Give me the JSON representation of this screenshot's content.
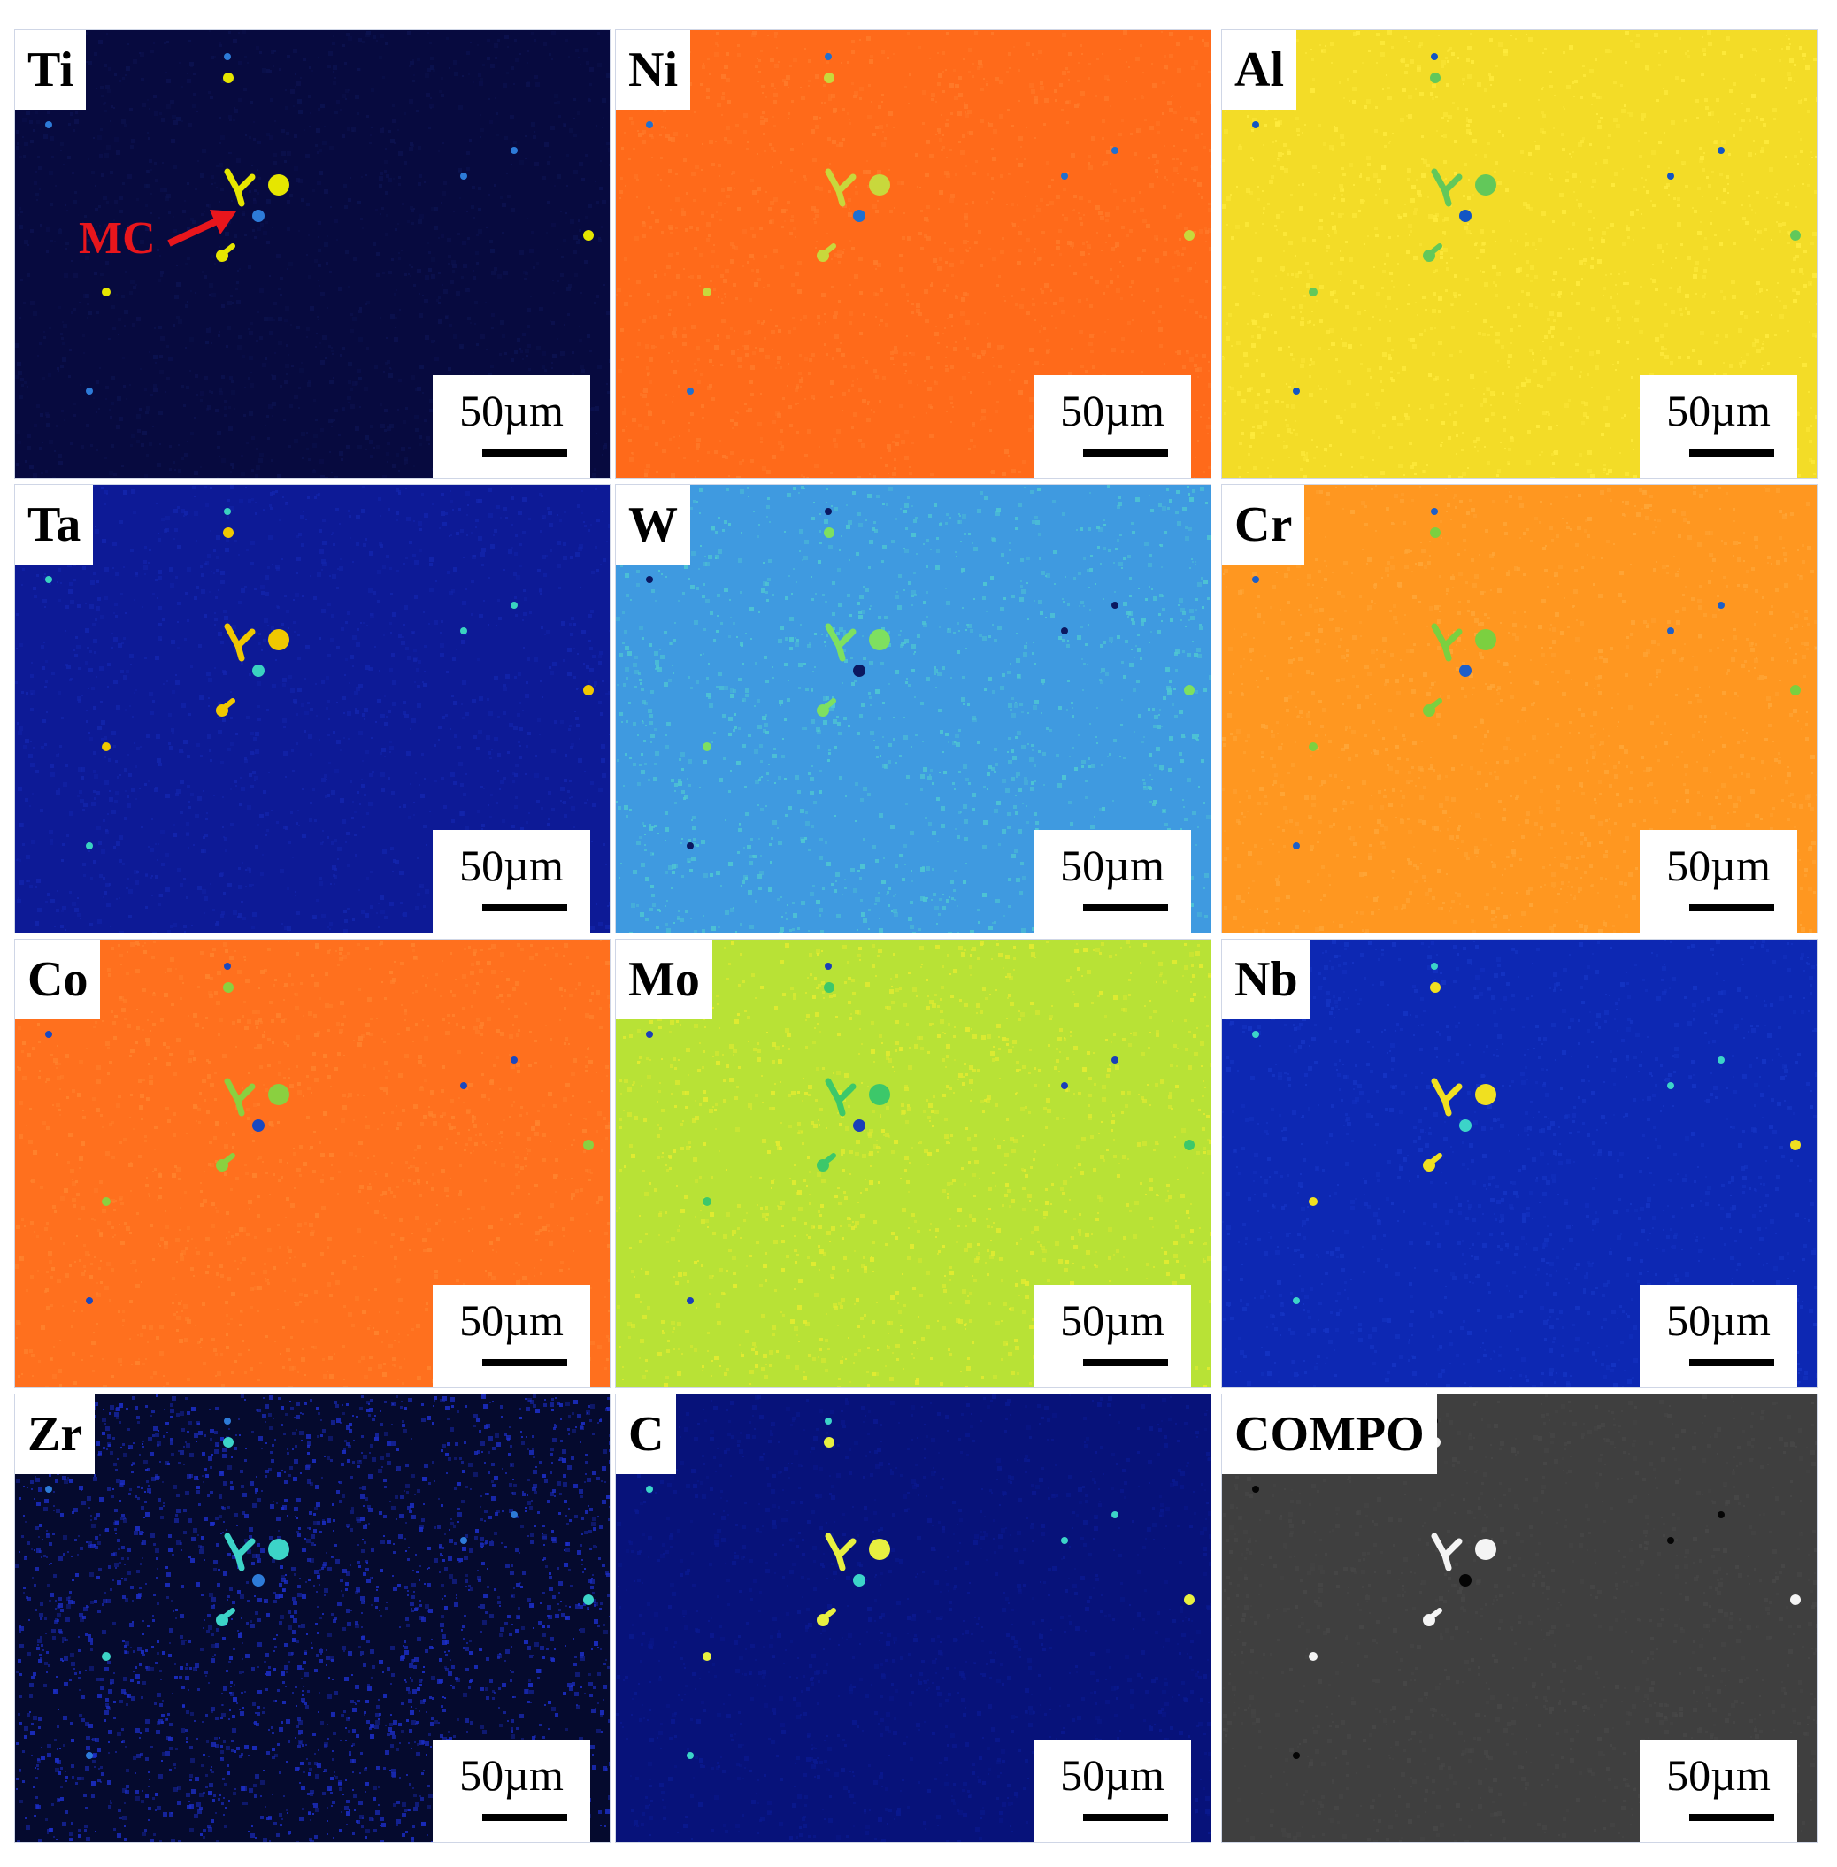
{
  "figure": {
    "panels": [
      {
        "label": "Ti",
        "scalebar": "50µm",
        "base_color": "#070a3f",
        "noise": "#0c1250",
        "particle_color": "#2d7bd8",
        "bright_particle_color": "#e6e600"
      },
      {
        "label": "Ni",
        "scalebar": "50µm",
        "base_color": "#ff6a1a",
        "noise": "#ff7b2b",
        "particle_color": "#1f6fd0",
        "bright_particle_color": "#c8d83c"
      },
      {
        "label": "Al",
        "scalebar": "50µm",
        "base_color": "#f3dc27",
        "noise": "#ffeb3d",
        "particle_color": "#1255c4",
        "bright_particle_color": "#62c85a"
      },
      {
        "label": "Ta",
        "scalebar": "50µm",
        "base_color": "#0d1a96",
        "noise": "#1325ad",
        "particle_color": "#3ad2c0",
        "bright_particle_color": "#f0c800"
      },
      {
        "label": "W",
        "scalebar": "50µm",
        "base_color": "#3f9ae0",
        "noise": "#4fc8d2",
        "particle_color": "#0b1860",
        "bright_particle_color": "#7ee060"
      },
      {
        "label": "Cr",
        "scalebar": "50µm",
        "base_color": "#ff9720",
        "noise": "#ffa638",
        "particle_color": "#1e5fc8",
        "bright_particle_color": "#7bd040"
      },
      {
        "label": "Co",
        "scalebar": "50µm",
        "base_color": "#ff701e",
        "noise": "#ff832e",
        "particle_color": "#1a48c0",
        "bright_particle_color": "#8ad040"
      },
      {
        "label": "Mo",
        "scalebar": "50µm",
        "base_color": "#b8e236",
        "noise": "#e6ec30",
        "particle_color": "#1a3fb8",
        "bright_particle_color": "#3cc86a"
      },
      {
        "label": "Nb",
        "scalebar": "50µm",
        "base_color": "#0d28b3",
        "noise": "#1534c4",
        "particle_color": "#3cd4c8",
        "bright_particle_color": "#f0e020"
      },
      {
        "label": "Zr",
        "scalebar": "50µm",
        "base_color": "#050a2e",
        "noise": "#1c2ec8",
        "particle_color": "#2d7bd8",
        "bright_particle_color": "#3cd4c8"
      },
      {
        "label": "C",
        "scalebar": "50µm",
        "base_color": "#07127a",
        "noise": "#0a1990",
        "particle_color": "#3cd4c8",
        "bright_particle_color": "#e8f040"
      },
      {
        "label": "COMPO",
        "scalebar": "50µm",
        "base_color": "#3f3f3f",
        "noise": "#474747",
        "particle_color": "#050505",
        "bright_particle_color": "#f4f4f4"
      }
    ],
    "annotation": {
      "text": "MC",
      "color": "#e8161c"
    }
  }
}
